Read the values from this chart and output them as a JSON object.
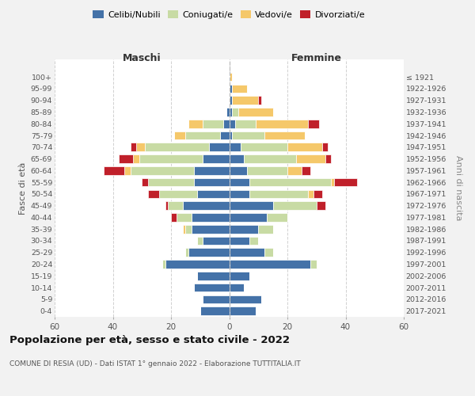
{
  "age_groups": [
    "0-4",
    "5-9",
    "10-14",
    "15-19",
    "20-24",
    "25-29",
    "30-34",
    "35-39",
    "40-44",
    "45-49",
    "50-54",
    "55-59",
    "60-64",
    "65-69",
    "70-74",
    "75-79",
    "80-84",
    "85-89",
    "90-94",
    "95-99",
    "100+"
  ],
  "birth_years": [
    "2017-2021",
    "2012-2016",
    "2007-2011",
    "2002-2006",
    "1997-2001",
    "1992-1996",
    "1987-1991",
    "1982-1986",
    "1977-1981",
    "1972-1976",
    "1967-1971",
    "1962-1966",
    "1957-1961",
    "1952-1956",
    "1947-1951",
    "1942-1946",
    "1937-1941",
    "1932-1936",
    "1927-1931",
    "1922-1926",
    "≤ 1921"
  ],
  "colors": {
    "celibi": "#4472a8",
    "coniugati": "#c8dba4",
    "vedovi": "#f5c86a",
    "divorziati": "#c0202a"
  },
  "males": {
    "celibi": [
      10,
      9,
      12,
      11,
      22,
      14,
      9,
      13,
      13,
      16,
      11,
      12,
      12,
      9,
      7,
      3,
      2,
      1,
      0,
      0,
      0
    ],
    "coniugati": [
      0,
      0,
      0,
      0,
      1,
      1,
      2,
      2,
      5,
      5,
      13,
      16,
      22,
      22,
      22,
      12,
      7,
      0,
      0,
      0,
      0
    ],
    "vedovi": [
      0,
      0,
      0,
      0,
      0,
      0,
      0,
      1,
      0,
      0,
      0,
      0,
      2,
      2,
      3,
      4,
      5,
      0,
      0,
      0,
      0
    ],
    "divorziati": [
      0,
      0,
      0,
      0,
      0,
      0,
      0,
      0,
      2,
      1,
      4,
      2,
      7,
      5,
      2,
      0,
      0,
      0,
      0,
      0,
      0
    ]
  },
  "females": {
    "celibi": [
      9,
      11,
      5,
      7,
      28,
      12,
      7,
      10,
      13,
      15,
      7,
      7,
      6,
      5,
      4,
      1,
      2,
      1,
      1,
      1,
      0
    ],
    "coniugati": [
      0,
      0,
      0,
      0,
      2,
      3,
      3,
      5,
      7,
      15,
      20,
      28,
      14,
      18,
      16,
      11,
      7,
      2,
      0,
      0,
      0
    ],
    "vedovi": [
      0,
      0,
      0,
      0,
      0,
      0,
      0,
      0,
      0,
      0,
      2,
      1,
      5,
      10,
      12,
      14,
      18,
      12,
      9,
      5,
      1
    ],
    "divorziati": [
      0,
      0,
      0,
      0,
      0,
      0,
      0,
      0,
      0,
      3,
      3,
      8,
      3,
      2,
      2,
      0,
      4,
      0,
      1,
      0,
      0
    ]
  },
  "xlim": 60,
  "title": "Popolazione per età, sesso e stato civile - 2022",
  "subtitle": "COMUNE DI RESIA (UD) - Dati ISTAT 1° gennaio 2022 - Elaborazione TUTTITALIA.IT",
  "label_maschi": "Maschi",
  "label_femmine": "Femmine",
  "ylabel_left": "Fasce di età",
  "ylabel_right": "Anni di nascita",
  "bg_color": "#f2f2f2",
  "plot_bg": "#ffffff",
  "grid_color": "#cccccc",
  "legend_labels": [
    "Celibi/Nubili",
    "Coniugati/e",
    "Vedovi/e",
    "Divorziati/e"
  ]
}
